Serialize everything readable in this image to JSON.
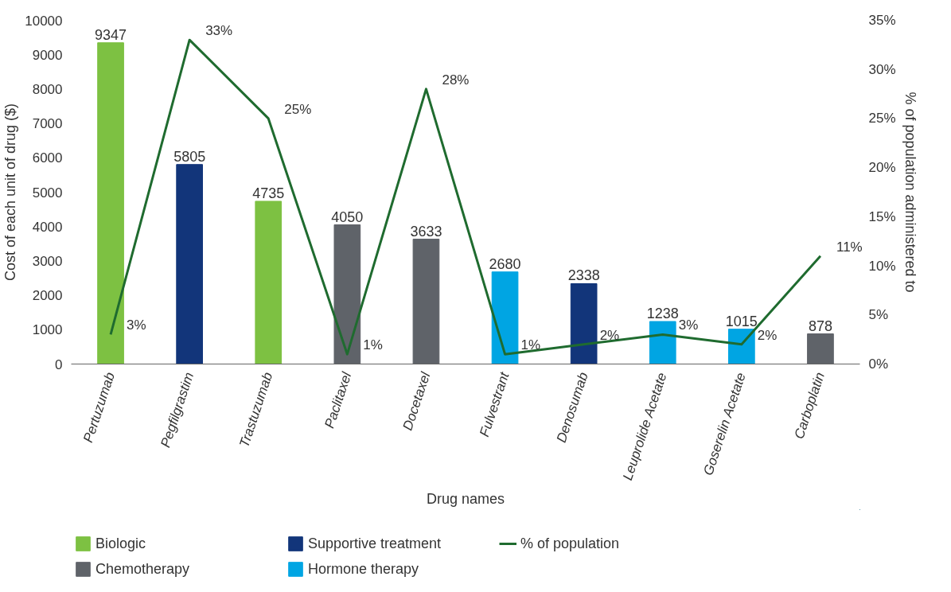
{
  "chart_data": {
    "type": "bar",
    "xlabel": "Drug names",
    "ylabel": "Cost of each unit of drug ($)",
    "y2label": "% of population administered to",
    "categories": [
      "Pertuzumab",
      "Pegfilgrastim",
      "Trastuzumab",
      "Paclitaxel",
      "Docetaxel",
      "Fulvestrant",
      "Denosumab",
      "Leuprolide Acetate",
      "Goserelin Acetate",
      "Carboplatin"
    ],
    "series": [
      {
        "name": "Biologic",
        "color": "#7dc142",
        "values": [
          9347,
          null,
          4735,
          null,
          null,
          null,
          null,
          null,
          null,
          null
        ]
      },
      {
        "name": "Chemotherapy",
        "color": "#5f6369",
        "values": [
          null,
          null,
          null,
          4050,
          3633,
          null,
          null,
          null,
          null,
          878
        ]
      },
      {
        "name": "Supportive treatment",
        "color": "#12357a",
        "values": [
          null,
          5805,
          null,
          null,
          null,
          null,
          2338,
          null,
          null,
          null
        ]
      },
      {
        "name": "Hormone therapy",
        "color": "#00a5e3",
        "values": [
          null,
          null,
          null,
          null,
          null,
          2680,
          null,
          1238,
          1015,
          null
        ]
      },
      {
        "name": "% of population",
        "type": "line",
        "axis": "y2",
        "color": "#1f6b2f",
        "values": [
          3,
          33,
          25,
          1,
          28,
          1,
          2,
          3,
          2,
          11
        ],
        "value_labels": [
          "3%",
          "33%",
          "25%",
          "1%",
          "28%",
          "1%",
          "2%",
          "3%",
          "2%",
          "11%"
        ]
      }
    ],
    "ylim": [
      0,
      10000
    ],
    "yticks": [
      0,
      1000,
      2000,
      3000,
      4000,
      5000,
      6000,
      7000,
      8000,
      9000,
      10000
    ],
    "y2lim": [
      0,
      35
    ],
    "y2ticks": [
      {
        "value": 0,
        "label": "0%"
      },
      {
        "value": 5,
        "label": "5%"
      },
      {
        "value": 10,
        "label": "10%"
      },
      {
        "value": 15,
        "label": "15%"
      },
      {
        "value": 20,
        "label": "20%"
      },
      {
        "value": 25,
        "label": "25%"
      },
      {
        "value": 30,
        "label": "30%"
      },
      {
        "value": 35,
        "label": "35%"
      }
    ],
    "data_labels": true,
    "grid": false,
    "legend": "bottom left"
  }
}
